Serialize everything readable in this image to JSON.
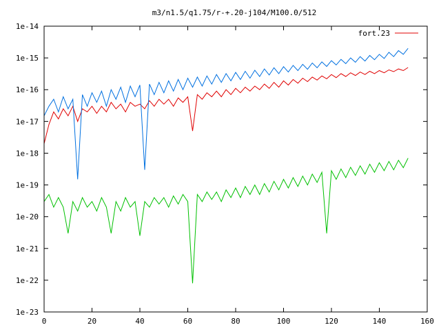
{
  "chart_data": {
    "type": "line",
    "title": "m3/n1.5/q1.75/r-+.20-j104/M100.0/512",
    "xlabel": "",
    "ylabel": "",
    "xlim": [
      0,
      160
    ],
    "ylim": [
      1e-23,
      1e-14
    ],
    "yscale": "log",
    "grid": false,
    "legend_position": "top-right",
    "x_ticks": [
      "0",
      "20",
      "40",
      "60",
      "80",
      "100",
      "120",
      "140",
      "160"
    ],
    "y_ticks": [
      "1e-23",
      "1e-22",
      "1e-21",
      "1e-20",
      "1e-19",
      "1e-18",
      "1e-17",
      "1e-16",
      "1e-15",
      "1e-14"
    ],
    "series": [
      {
        "name": "fort.23",
        "color": "#e00000",
        "x": [
          0,
          2,
          4,
          6,
          8,
          10,
          12,
          14,
          16,
          18,
          20,
          22,
          24,
          26,
          28,
          30,
          32,
          34,
          36,
          38,
          40,
          42,
          44,
          46,
          48,
          50,
          52,
          54,
          56,
          58,
          60,
          62,
          64,
          66,
          68,
          70,
          72,
          74,
          76,
          78,
          80,
          82,
          84,
          86,
          88,
          90,
          92,
          94,
          96,
          98,
          100,
          102,
          104,
          106,
          108,
          110,
          112,
          114,
          116,
          118,
          120,
          122,
          124,
          126,
          128,
          130,
          132,
          134,
          136,
          138,
          140,
          142,
          144,
          146,
          148,
          150,
          152
        ],
        "y": [
          2e-18,
          8e-18,
          2e-17,
          1.2e-17,
          2.5e-17,
          1.5e-17,
          3e-17,
          1e-17,
          2.5e-17,
          2e-17,
          3e-17,
          1.8e-17,
          3e-17,
          2e-17,
          4e-17,
          2.5e-17,
          3.5e-17,
          2e-17,
          4e-17,
          3e-17,
          3.5e-17,
          2.5e-17,
          4.5e-17,
          3e-17,
          5e-17,
          3.5e-17,
          5e-17,
          3e-17,
          5.5e-17,
          4e-17,
          6e-17,
          5e-18,
          7e-17,
          5e-17,
          8e-17,
          6e-17,
          9e-17,
          6e-17,
          1e-16,
          7e-17,
          1.1e-16,
          8e-17,
          1.2e-16,
          9e-17,
          1.3e-16,
          1e-16,
          1.5e-16,
          1.1e-16,
          1.7e-16,
          1.2e-16,
          1.9e-16,
          1.4e-16,
          2.1e-16,
          1.6e-16,
          2.3e-16,
          1.8e-16,
          2.5e-16,
          2e-16,
          2.7e-16,
          2.2e-16,
          3e-16,
          2.4e-16,
          3.2e-16,
          2.6e-16,
          3.4e-16,
          2.8e-16,
          3.6e-16,
          3e-16,
          3.8e-16,
          3.2e-16,
          4e-16,
          3.4e-16,
          4.2e-16,
          3.7e-16,
          4.5e-16,
          4e-16,
          5e-16
        ]
      },
      {
        "name": "",
        "color": "#0070e0",
        "x": [
          0,
          2,
          4,
          6,
          8,
          10,
          12,
          14,
          16,
          18,
          20,
          22,
          24,
          26,
          28,
          30,
          32,
          34,
          36,
          38,
          40,
          42,
          44,
          46,
          48,
          50,
          52,
          54,
          56,
          58,
          60,
          62,
          64,
          66,
          68,
          70,
          72,
          74,
          76,
          78,
          80,
          82,
          84,
          86,
          88,
          90,
          92,
          94,
          96,
          98,
          100,
          102,
          104,
          106,
          108,
          110,
          112,
          114,
          116,
          118,
          120,
          122,
          124,
          126,
          128,
          130,
          132,
          134,
          136,
          138,
          140,
          142,
          144,
          146,
          148,
          150,
          152
        ],
        "y": [
          1.5e-17,
          3e-17,
          5e-17,
          2e-17,
          6e-17,
          2.5e-17,
          5e-17,
          1.5e-19,
          7e-17,
          3e-17,
          8e-17,
          4e-17,
          9e-17,
          3e-17,
          1e-16,
          5e-17,
          1.2e-16,
          4e-17,
          1.3e-16,
          6e-17,
          1.4e-16,
          3e-19,
          1.5e-16,
          7e-17,
          1.7e-16,
          8e-17,
          1.9e-16,
          9e-17,
          2.1e-16,
          1e-16,
          2.3e-16,
          1.2e-16,
          2.5e-16,
          1.3e-16,
          2.7e-16,
          1.5e-16,
          3e-16,
          1.7e-16,
          3.2e-16,
          1.9e-16,
          3.5e-16,
          2.1e-16,
          3.8e-16,
          2.3e-16,
          4.1e-16,
          2.6e-16,
          4.5e-16,
          2.9e-16,
          4.9e-16,
          3.2e-16,
          5.3e-16,
          3.6e-16,
          5.8e-16,
          4e-16,
          6.3e-16,
          4.4e-16,
          6.9e-16,
          4.9e-16,
          7.5e-16,
          5.4e-16,
          8.2e-16,
          6e-16,
          9e-16,
          6.6e-16,
          1e-15,
          7.3e-16,
          1.1e-15,
          8e-16,
          1.2e-15,
          8.8e-16,
          1.3e-15,
          9.6e-16,
          1.5e-15,
          1.1e-15,
          1.7e-15,
          1.3e-15,
          2e-15
        ]
      },
      {
        "name": "",
        "color": "#00c000",
        "x": [
          0,
          2,
          4,
          6,
          8,
          10,
          12,
          14,
          16,
          18,
          20,
          22,
          24,
          26,
          28,
          30,
          32,
          34,
          36,
          38,
          40,
          42,
          44,
          46,
          48,
          50,
          52,
          54,
          56,
          58,
          60,
          62,
          64,
          66,
          68,
          70,
          72,
          74,
          76,
          78,
          80,
          82,
          84,
          86,
          88,
          90,
          92,
          94,
          96,
          98,
          100,
          102,
          104,
          106,
          108,
          110,
          112,
          114,
          116,
          118,
          120,
          122,
          124,
          126,
          128,
          130,
          132,
          134,
          136,
          138,
          140,
          142,
          144,
          146,
          148,
          150,
          152
        ],
        "y": [
          3e-20,
          5e-20,
          2e-20,
          4e-20,
          2e-20,
          3e-21,
          3e-20,
          1.5e-20,
          4e-20,
          2e-20,
          3e-20,
          1.5e-20,
          4e-20,
          2e-20,
          3e-21,
          3e-20,
          1.5e-20,
          4e-20,
          2e-20,
          3e-20,
          2.5e-21,
          3e-20,
          2e-20,
          4e-20,
          2.5e-20,
          4e-20,
          2e-20,
          4.5e-20,
          2.5e-20,
          5e-20,
          3e-20,
          8e-23,
          5e-20,
          3e-20,
          6e-20,
          3.5e-20,
          6e-20,
          3e-20,
          7e-20,
          4e-20,
          8e-20,
          4e-20,
          9e-20,
          5e-20,
          1e-19,
          5e-20,
          1.1e-19,
          6e-20,
          1.3e-19,
          7e-20,
          1.5e-19,
          8e-20,
          1.7e-19,
          9e-20,
          1.9e-19,
          1e-19,
          2.2e-19,
          1.2e-19,
          2.5e-19,
          3e-21,
          2.8e-19,
          1.5e-19,
          3.2e-19,
          1.7e-19,
          3.6e-19,
          2e-19,
          4e-19,
          2.2e-19,
          4.5e-19,
          2.5e-19,
          5e-19,
          2.8e-19,
          5.5e-19,
          3e-19,
          6e-19,
          3.5e-19,
          7e-19
        ]
      }
    ]
  }
}
